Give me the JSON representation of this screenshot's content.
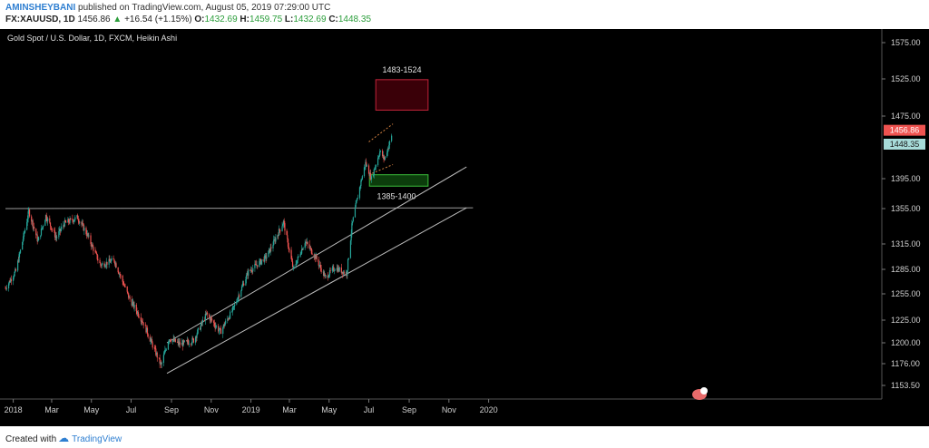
{
  "header": {
    "author": "AMINSHEYBANI",
    "published": "published on TradingView.com, August 05, 2019 07:29:00 UTC",
    "symbol": "FX:XAUUSD, 1D",
    "last": "1456.86",
    "change": "+16.54 (+1.15%)",
    "o_label": "O:",
    "o_value": "1432.69",
    "h_label": "H:",
    "h_value": "1459.75",
    "l_label": "L:",
    "l_value": "1432.69",
    "c_label": "C:",
    "c_value": "1448.35"
  },
  "chart_data": {
    "type": "candlestick",
    "title": "Gold Spot / U.S. Dollar, 1D, FXCM, Heikin Ashi",
    "y_ticks": [
      "1575.00",
      "1525.00",
      "1475.00",
      "1395.00",
      "1355.00",
      "1315.00",
      "1285.00",
      "1255.00",
      "1225.00",
      "1200.00",
      "1176.00",
      "1153.50"
    ],
    "x_ticks": [
      "2018",
      "Mar",
      "May",
      "Jul",
      "Sep",
      "Nov",
      "2019",
      "Mar",
      "May",
      "Jul",
      "Sep",
      "Nov",
      "2020"
    ],
    "price_badges": [
      {
        "label": "1456.86",
        "color": "#ef5350"
      },
      {
        "label": "1448.35",
        "color": "#a8dcd9"
      }
    ],
    "zones": [
      {
        "label": "1483-1524",
        "low": 1483,
        "high": 1524,
        "color": "#8b0000"
      },
      {
        "label": "1385-1400",
        "low": 1385,
        "high": 1400,
        "color": "#1e7a1e"
      }
    ],
    "price_path": [
      [
        "2017-12-20",
        1262
      ],
      [
        "2018-01-05",
        1283
      ],
      [
        "2018-01-25",
        1352
      ],
      [
        "2018-02-08",
        1318
      ],
      [
        "2018-02-20",
        1347
      ],
      [
        "2018-03-08",
        1322
      ],
      [
        "2018-03-20",
        1338
      ],
      [
        "2018-04-10",
        1345
      ],
      [
        "2018-04-25",
        1325
      ],
      [
        "2018-05-15",
        1290
      ],
      [
        "2018-06-05",
        1296
      ],
      [
        "2018-06-28",
        1250
      ],
      [
        "2018-07-20",
        1222
      ],
      [
        "2018-08-16",
        1174
      ],
      [
        "2018-08-28",
        1205
      ],
      [
        "2018-09-15",
        1198
      ],
      [
        "2018-10-05",
        1203
      ],
      [
        "2018-10-25",
        1232
      ],
      [
        "2018-11-15",
        1212
      ],
      [
        "2018-12-05",
        1238
      ],
      [
        "2018-12-28",
        1282
      ],
      [
        "2019-01-25",
        1300
      ],
      [
        "2019-02-20",
        1340
      ],
      [
        "2019-03-07",
        1285
      ],
      [
        "2019-03-25",
        1318
      ],
      [
        "2019-04-10",
        1300
      ],
      [
        "2019-04-25",
        1275
      ],
      [
        "2019-05-10",
        1287
      ],
      [
        "2019-05-28",
        1280
      ],
      [
        "2019-06-05",
        1335
      ],
      [
        "2019-06-20",
        1395
      ],
      [
        "2019-06-26",
        1415
      ],
      [
        "2019-07-05",
        1395
      ],
      [
        "2019-07-18",
        1430
      ],
      [
        "2019-07-25",
        1420
      ],
      [
        "2019-08-05",
        1449
      ]
    ]
  }
}
